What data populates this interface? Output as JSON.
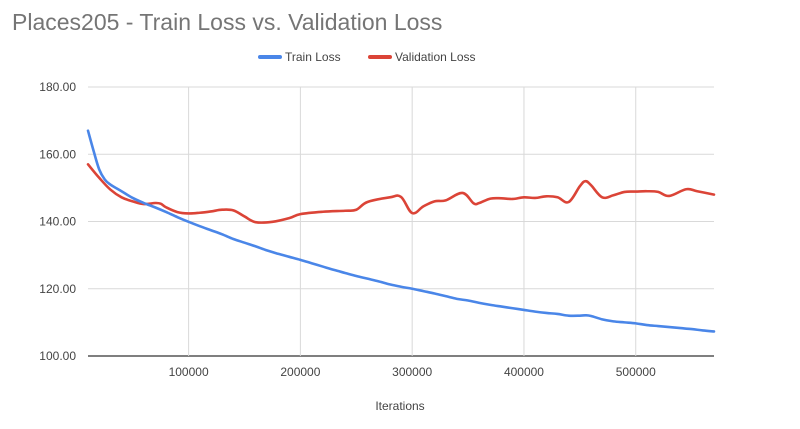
{
  "chart_data": {
    "type": "line",
    "title": "Places205 - Train Loss vs. Validation Loss",
    "xlabel": "Iterations",
    "ylabel": "",
    "xlim": [
      10000,
      570000
    ],
    "ylim": [
      100,
      180
    ],
    "x_ticks": [
      {
        "value": 100000,
        "label": "100000"
      },
      {
        "value": 200000,
        "label": "200000"
      },
      {
        "value": 300000,
        "label": "300000"
      },
      {
        "value": 400000,
        "label": "400000"
      },
      {
        "value": 500000,
        "label": "500000"
      }
    ],
    "y_ticks": [
      {
        "value": 100,
        "label": "100.00"
      },
      {
        "value": 120,
        "label": "120.00"
      },
      {
        "value": 140,
        "label": "140.00"
      },
      {
        "value": 160,
        "label": "160.00"
      },
      {
        "value": 180,
        "label": "180.00"
      }
    ],
    "grid": true,
    "legend_position": "top",
    "series": [
      {
        "name": "Train Loss",
        "color": "#4a86e8",
        "points": [
          [
            10000,
            167
          ],
          [
            15000,
            161
          ],
          [
            20000,
            155.5
          ],
          [
            25000,
            152.5
          ],
          [
            30000,
            151
          ],
          [
            40000,
            149
          ],
          [
            50000,
            147
          ],
          [
            60000,
            145.5
          ],
          [
            70000,
            144.2
          ],
          [
            80000,
            142.8
          ],
          [
            90000,
            141.3
          ],
          [
            100000,
            139.9
          ],
          [
            110000,
            138.6
          ],
          [
            120000,
            137.4
          ],
          [
            130000,
            136.2
          ],
          [
            140000,
            134.8
          ],
          [
            150000,
            133.7
          ],
          [
            160000,
            132.6
          ],
          [
            170000,
            131.4
          ],
          [
            180000,
            130.4
          ],
          [
            190000,
            129.5
          ],
          [
            200000,
            128.6
          ],
          [
            210000,
            127.6
          ],
          [
            220000,
            126.6
          ],
          [
            230000,
            125.6
          ],
          [
            240000,
            124.7
          ],
          [
            250000,
            123.8
          ],
          [
            260000,
            123
          ],
          [
            270000,
            122.2
          ],
          [
            280000,
            121.3
          ],
          [
            290000,
            120.6
          ],
          [
            300000,
            120
          ],
          [
            310000,
            119.3
          ],
          [
            320000,
            118.6
          ],
          [
            330000,
            117.8
          ],
          [
            340000,
            117
          ],
          [
            350000,
            116.5
          ],
          [
            360000,
            115.8
          ],
          [
            370000,
            115.2
          ],
          [
            380000,
            114.7
          ],
          [
            390000,
            114.2
          ],
          [
            400000,
            113.7
          ],
          [
            410000,
            113.2
          ],
          [
            420000,
            112.8
          ],
          [
            430000,
            112.5
          ],
          [
            440000,
            112
          ],
          [
            450000,
            112
          ],
          [
            455000,
            112.1
          ],
          [
            460000,
            111.9
          ],
          [
            470000,
            110.9
          ],
          [
            480000,
            110.3
          ],
          [
            490000,
            110
          ],
          [
            500000,
            109.7
          ],
          [
            510000,
            109.2
          ],
          [
            520000,
            108.9
          ],
          [
            530000,
            108.6
          ],
          [
            540000,
            108.3
          ],
          [
            550000,
            108
          ],
          [
            560000,
            107.6
          ],
          [
            570000,
            107.3
          ]
        ]
      },
      {
        "name": "Validation Loss",
        "color": "#db4437",
        "points": [
          [
            10000,
            157
          ],
          [
            20000,
            153
          ],
          [
            30000,
            149.5
          ],
          [
            40000,
            147.2
          ],
          [
            50000,
            146
          ],
          [
            60000,
            145.2
          ],
          [
            70000,
            145.5
          ],
          [
            75000,
            145.3
          ],
          [
            80000,
            144.2
          ],
          [
            90000,
            142.8
          ],
          [
            100000,
            142.4
          ],
          [
            110000,
            142.6
          ],
          [
            120000,
            143
          ],
          [
            130000,
            143.5
          ],
          [
            140000,
            143.3
          ],
          [
            150000,
            141.5
          ],
          [
            160000,
            139.8
          ],
          [
            175000,
            139.9
          ],
          [
            190000,
            141
          ],
          [
            200000,
            142.2
          ],
          [
            220000,
            142.9
          ],
          [
            240000,
            143.2
          ],
          [
            250000,
            143.5
          ],
          [
            260000,
            145.8
          ],
          [
            280000,
            147.2
          ],
          [
            290000,
            147.3
          ],
          [
            300000,
            142.5
          ],
          [
            310000,
            144.5
          ],
          [
            320000,
            146
          ],
          [
            330000,
            146.3
          ],
          [
            345000,
            148.5
          ],
          [
            355000,
            145.4
          ],
          [
            360000,
            145.5
          ],
          [
            370000,
            146.8
          ],
          [
            380000,
            146.9
          ],
          [
            390000,
            146.7
          ],
          [
            400000,
            147.2
          ],
          [
            410000,
            147
          ],
          [
            420000,
            147.5
          ],
          [
            430000,
            147.2
          ],
          [
            440000,
            145.8
          ],
          [
            450000,
            150.5
          ],
          [
            455000,
            152
          ],
          [
            460000,
            150.8
          ],
          [
            470000,
            147.2
          ],
          [
            480000,
            147.8
          ],
          [
            490000,
            148.8
          ],
          [
            500000,
            148.9
          ],
          [
            510000,
            149
          ],
          [
            520000,
            148.8
          ],
          [
            530000,
            147.6
          ],
          [
            545000,
            149.6
          ],
          [
            555000,
            149
          ],
          [
            570000,
            148
          ]
        ]
      }
    ]
  }
}
